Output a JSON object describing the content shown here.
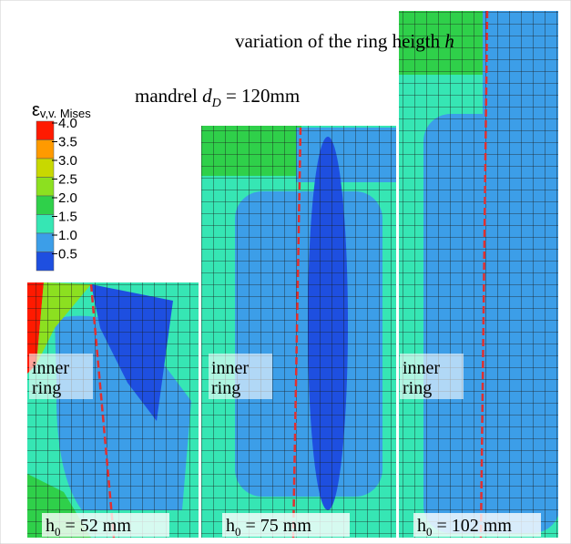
{
  "title": {
    "text": "variation of the ring heigth ",
    "var": "h"
  },
  "subtitle": {
    "text": "mandrel ",
    "var": "d",
    "sub": "D",
    "rest": " = 120mm"
  },
  "legend": {
    "symbol": "ε",
    "sub": "v,v. Mises",
    "labels": [
      "4.0",
      "3.5",
      "3.0",
      "2.5",
      "2.0",
      "1.5",
      "1.0",
      "0.5"
    ],
    "colors": [
      "#ff1a00",
      "#ff9a00",
      "#c8d800",
      "#8ce020",
      "#2fd04a",
      "#36e6b4",
      "#3c9ee8",
      "#1e4fe0"
    ]
  },
  "panels": [
    {
      "label": [
        "inner",
        "ring"
      ],
      "height": {
        "var": "h",
        "sub": "0",
        "rest": " = 52 mm"
      }
    },
    {
      "label": [
        "inner",
        "ring"
      ],
      "height": {
        "var": "h",
        "sub": "0",
        "rest": " = 75 mm"
      }
    },
    {
      "label": [
        "inner",
        "ring"
      ],
      "height": {
        "var": "h",
        "sub": "0",
        "rest": " = 102 mm"
      }
    }
  ]
}
